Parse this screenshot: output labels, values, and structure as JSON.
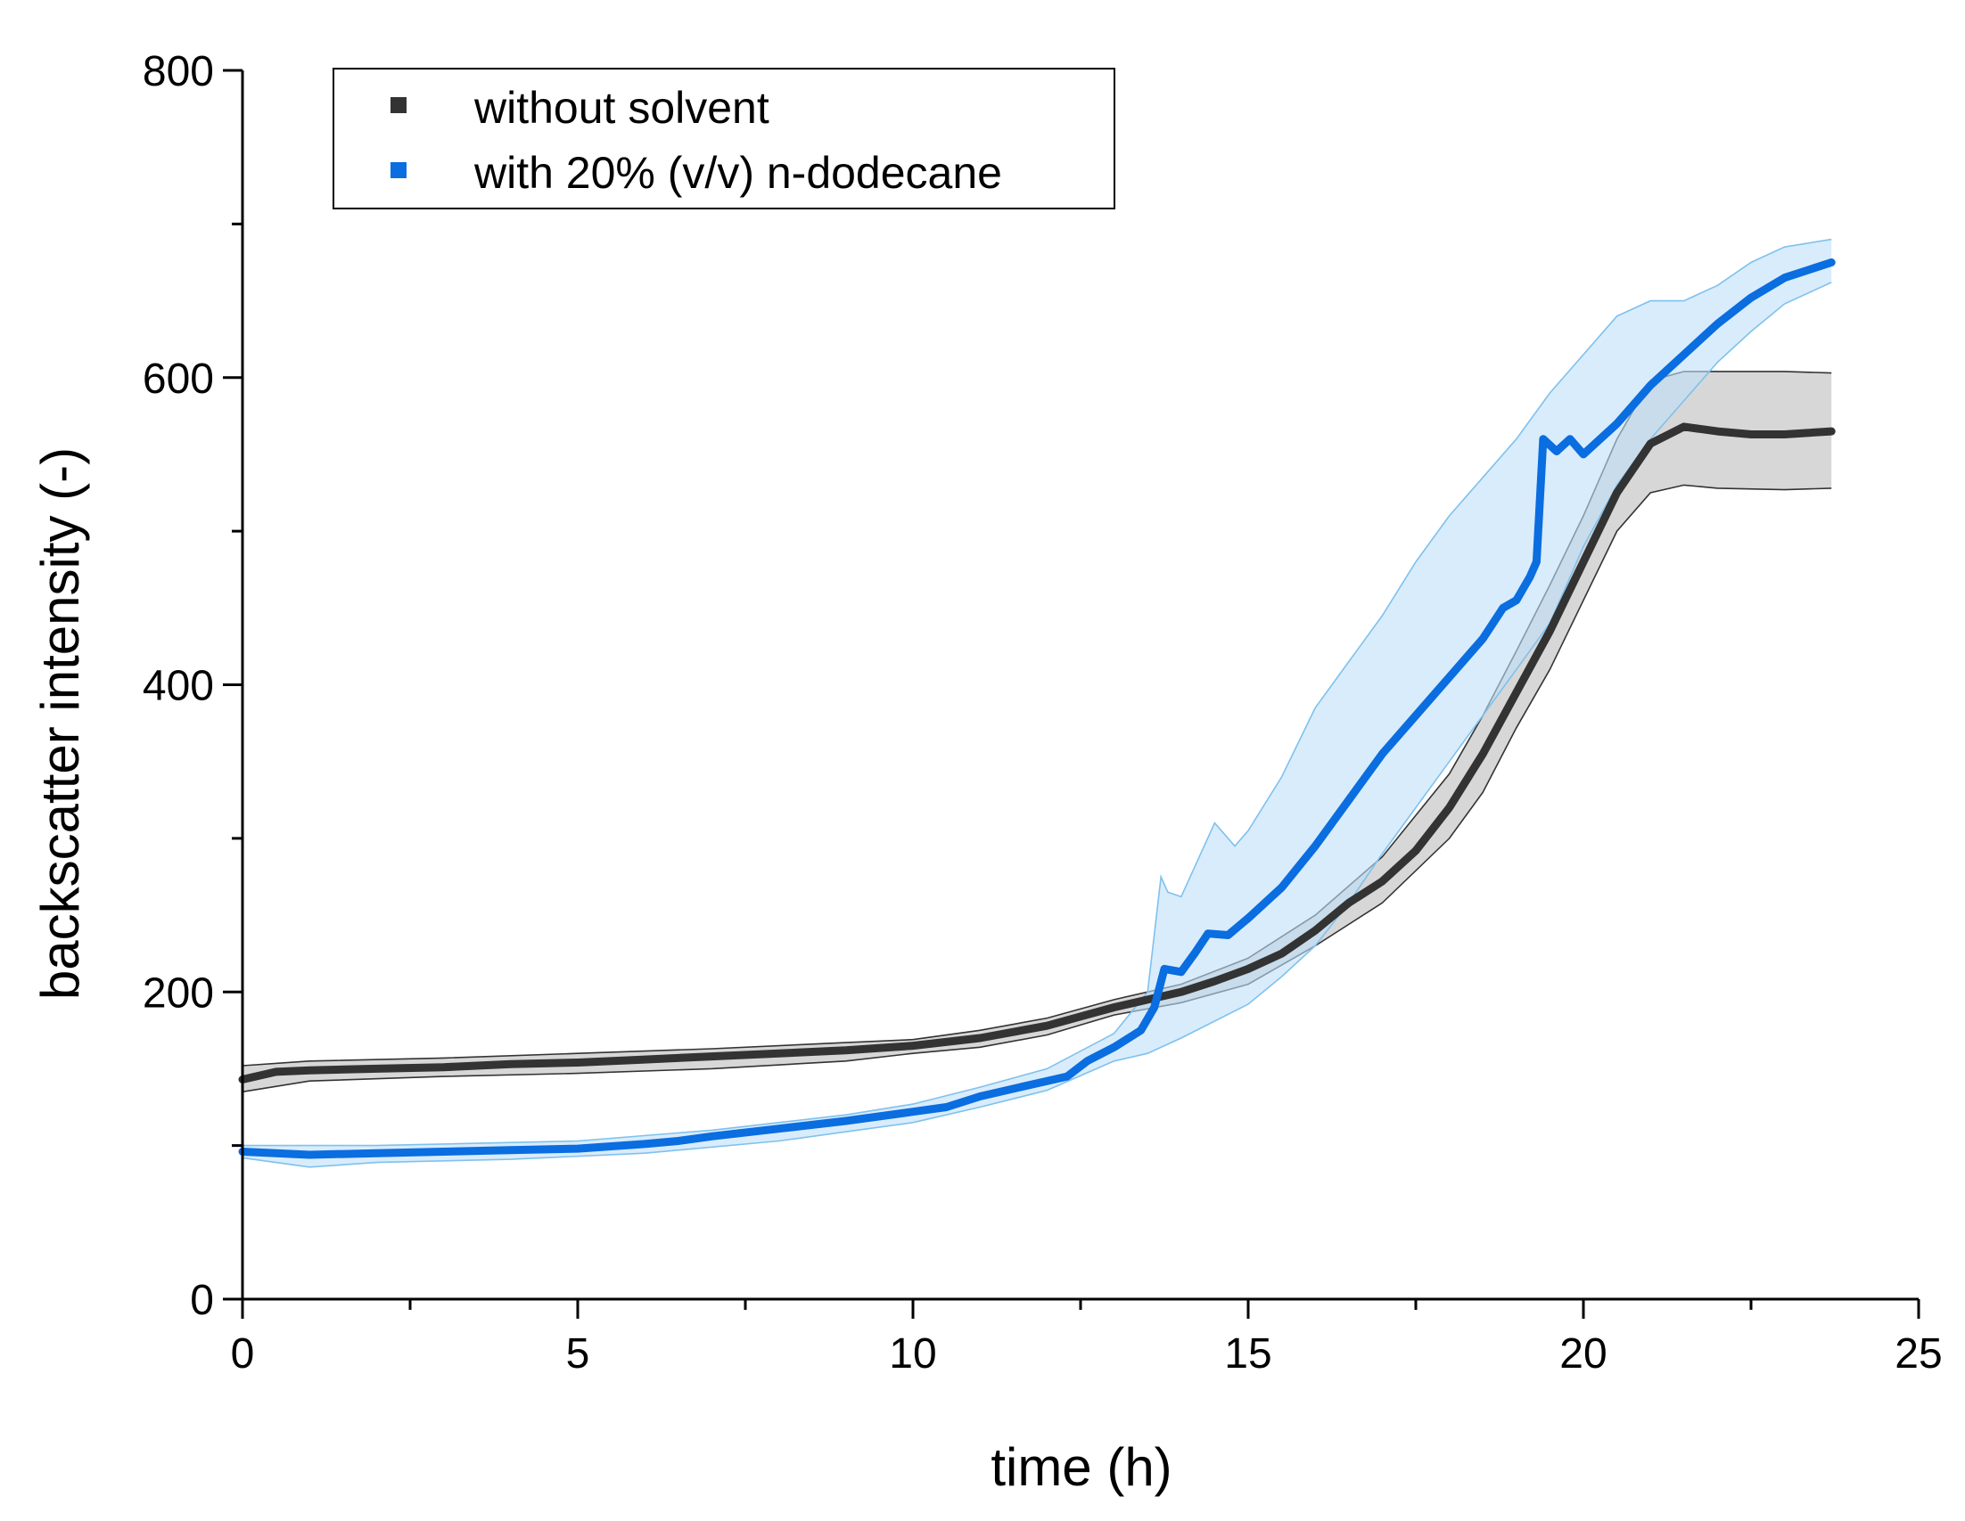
{
  "chart_data": {
    "type": "line",
    "title": "",
    "xlabel": "time (h)",
    "ylabel": "backscatter intensity (-)",
    "xlim": [
      0,
      25
    ],
    "ylim": [
      0,
      800
    ],
    "xticks": [
      0,
      5,
      10,
      15,
      20,
      25
    ],
    "xtick_labels": [
      "0",
      "5",
      "10",
      "15",
      "20",
      "25"
    ],
    "yticks": [
      0,
      200,
      400,
      600,
      800
    ],
    "ytick_labels": [
      "0",
      "200",
      "400",
      "600",
      "800"
    ],
    "x_minor_step": 2.5,
    "y_minor_step": 100,
    "grid": false,
    "legend_position": "top-left",
    "series": [
      {
        "name": "without solvent",
        "color": "#333333",
        "band_fill": "#d0d0d0",
        "band_edge": "#333333",
        "mean": [
          [
            0,
            143
          ],
          [
            0.5,
            148
          ],
          [
            1,
            149
          ],
          [
            2,
            150
          ],
          [
            3,
            151
          ],
          [
            4,
            153
          ],
          [
            5,
            154
          ],
          [
            6,
            156
          ],
          [
            7,
            158
          ],
          [
            8,
            160
          ],
          [
            9,
            162
          ],
          [
            10,
            165
          ],
          [
            11,
            170
          ],
          [
            12,
            178
          ],
          [
            12.5,
            184
          ],
          [
            13,
            190
          ],
          [
            13.5,
            195
          ],
          [
            14,
            200
          ],
          [
            14.5,
            207
          ],
          [
            15,
            215
          ],
          [
            15.5,
            225
          ],
          [
            16,
            240
          ],
          [
            16.5,
            258
          ],
          [
            17,
            272
          ],
          [
            17.5,
            292
          ],
          [
            18,
            320
          ],
          [
            18.5,
            355
          ],
          [
            19,
            395
          ],
          [
            19.5,
            435
          ],
          [
            20,
            480
          ],
          [
            20.5,
            525
          ],
          [
            21,
            557
          ],
          [
            21.5,
            568
          ],
          [
            22,
            565
          ],
          [
            22.5,
            563
          ],
          [
            23,
            563
          ],
          [
            23.7,
            565
          ]
        ],
        "upper": [
          [
            0,
            152
          ],
          [
            1,
            155
          ],
          [
            3,
            157
          ],
          [
            5,
            160
          ],
          [
            7,
            163
          ],
          [
            9,
            167
          ],
          [
            10,
            169
          ],
          [
            11,
            175
          ],
          [
            12,
            183
          ],
          [
            13,
            195
          ],
          [
            14,
            205
          ],
          [
            15,
            222
          ],
          [
            16,
            250
          ],
          [
            17,
            288
          ],
          [
            18,
            342
          ],
          [
            18.5,
            380
          ],
          [
            19,
            422
          ],
          [
            19.5,
            465
          ],
          [
            20,
            510
          ],
          [
            20.5,
            560
          ],
          [
            21,
            598
          ],
          [
            21.5,
            604
          ],
          [
            22,
            604
          ],
          [
            23,
            604
          ],
          [
            23.7,
            603
          ]
        ],
        "lower": [
          [
            0,
            135
          ],
          [
            1,
            142
          ],
          [
            3,
            145
          ],
          [
            5,
            147
          ],
          [
            7,
            150
          ],
          [
            9,
            155
          ],
          [
            10,
            160
          ],
          [
            11,
            164
          ],
          [
            12,
            172
          ],
          [
            13,
            185
          ],
          [
            14,
            193
          ],
          [
            15,
            205
          ],
          [
            16,
            230
          ],
          [
            17,
            258
          ],
          [
            18,
            300
          ],
          [
            18.5,
            330
          ],
          [
            19,
            372
          ],
          [
            19.5,
            410
          ],
          [
            20,
            455
          ],
          [
            20.5,
            500
          ],
          [
            21,
            525
          ],
          [
            21.5,
            530
          ],
          [
            22,
            528
          ],
          [
            23,
            527
          ],
          [
            23.7,
            528
          ]
        ]
      },
      {
        "name": "with 20% (v/v) n-dodecane",
        "color": "#0a6de0",
        "band_fill": "#bfe0f8",
        "band_edge": "#7ec1ee",
        "mean": [
          [
            0,
            96
          ],
          [
            0.5,
            95
          ],
          [
            1,
            94
          ],
          [
            2,
            95
          ],
          [
            3,
            96
          ],
          [
            4,
            97
          ],
          [
            5,
            98
          ],
          [
            6,
            101
          ],
          [
            6.5,
            103
          ],
          [
            7,
            106
          ],
          [
            8,
            111
          ],
          [
            9,
            116
          ],
          [
            10,
            122
          ],
          [
            10.5,
            125
          ],
          [
            11,
            132
          ],
          [
            12,
            142
          ],
          [
            12.3,
            145
          ],
          [
            12.6,
            155
          ],
          [
            13,
            164
          ],
          [
            13.4,
            175
          ],
          [
            13.6,
            190
          ],
          [
            13.75,
            215
          ],
          [
            14,
            213
          ],
          [
            14.2,
            225
          ],
          [
            14.4,
            238
          ],
          [
            14.7,
            237
          ],
          [
            15,
            248
          ],
          [
            15.5,
            268
          ],
          [
            16,
            295
          ],
          [
            16.5,
            325
          ],
          [
            17,
            355
          ],
          [
            17.5,
            380
          ],
          [
            18,
            405
          ],
          [
            18.5,
            430
          ],
          [
            18.8,
            450
          ],
          [
            19,
            455
          ],
          [
            19.2,
            470
          ],
          [
            19.3,
            480
          ],
          [
            19.4,
            560
          ],
          [
            19.6,
            552
          ],
          [
            19.8,
            560
          ],
          [
            20,
            550
          ],
          [
            20.5,
            570
          ],
          [
            21,
            595
          ],
          [
            21.5,
            615
          ],
          [
            22,
            635
          ],
          [
            22.5,
            652
          ],
          [
            23,
            665
          ],
          [
            23.7,
            675
          ]
        ],
        "upper": [
          [
            0,
            100
          ],
          [
            2,
            100
          ],
          [
            5,
            103
          ],
          [
            7,
            110
          ],
          [
            9,
            120
          ],
          [
            10,
            127
          ],
          [
            11,
            138
          ],
          [
            12,
            150
          ],
          [
            13,
            173
          ],
          [
            13.5,
            200
          ],
          [
            13.7,
            275
          ],
          [
            13.8,
            265
          ],
          [
            14,
            262
          ],
          [
            14.5,
            310
          ],
          [
            14.8,
            295
          ],
          [
            15,
            305
          ],
          [
            15.5,
            340
          ],
          [
            16,
            385
          ],
          [
            16.5,
            415
          ],
          [
            17,
            445
          ],
          [
            17.5,
            480
          ],
          [
            18,
            510
          ],
          [
            18.5,
            535
          ],
          [
            19,
            560
          ],
          [
            19.5,
            590
          ],
          [
            20,
            615
          ],
          [
            20.5,
            640
          ],
          [
            21,
            650
          ],
          [
            21.5,
            650
          ],
          [
            22,
            660
          ],
          [
            22.5,
            675
          ],
          [
            23,
            685
          ],
          [
            23.7,
            690
          ]
        ],
        "lower": [
          [
            0,
            92
          ],
          [
            1,
            86
          ],
          [
            2,
            89
          ],
          [
            4,
            91
          ],
          [
            6,
            95
          ],
          [
            8,
            103
          ],
          [
            10,
            115
          ],
          [
            11,
            125
          ],
          [
            12,
            136
          ],
          [
            13,
            155
          ],
          [
            13.5,
            160
          ],
          [
            14,
            170
          ],
          [
            15,
            192
          ],
          [
            15.5,
            210
          ],
          [
            16,
            230
          ],
          [
            16.5,
            258
          ],
          [
            17,
            290
          ],
          [
            17.5,
            320
          ],
          [
            18,
            350
          ],
          [
            18.5,
            380
          ],
          [
            19,
            410
          ],
          [
            19.5,
            440
          ],
          [
            20,
            490
          ],
          [
            20.5,
            530
          ],
          [
            21,
            560
          ],
          [
            21.5,
            585
          ],
          [
            22,
            610
          ],
          [
            22.5,
            630
          ],
          [
            23,
            648
          ],
          [
            23.7,
            662
          ]
        ]
      }
    ]
  }
}
